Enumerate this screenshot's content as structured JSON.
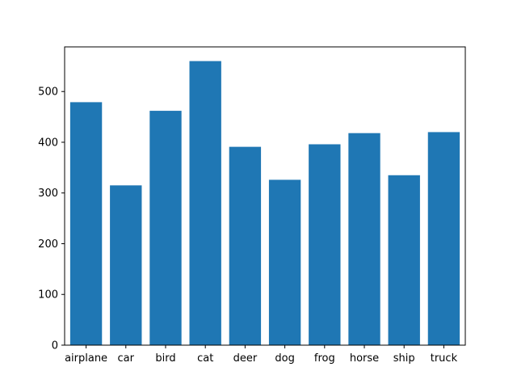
{
  "chart_data": {
    "type": "bar",
    "title": "",
    "xlabel": "",
    "ylabel": "",
    "categories": [
      "airplane",
      "car",
      "bird",
      "cat",
      "deer",
      "dog",
      "frog",
      "horse",
      "ship",
      "truck"
    ],
    "values": [
      479,
      315,
      462,
      560,
      391,
      326,
      396,
      418,
      335,
      420
    ],
    "ylim": [
      0,
      588
    ],
    "yticks": [
      0,
      100,
      200,
      300,
      400,
      500
    ],
    "grid": false,
    "bar_color": "#1f77b4"
  }
}
